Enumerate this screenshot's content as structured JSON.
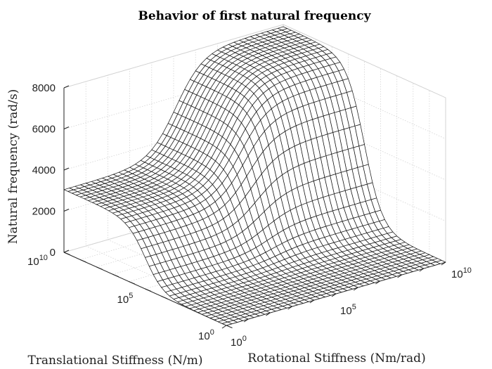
{
  "chart_data": {
    "type": "surface",
    "title": "Behavior of first natural frequency",
    "xlabel": "Rotational Stiffness (Nm/rad)",
    "ylabel": "Translational Stiffness (N/m)",
    "zlabel": "Natural frequency (rad/s)",
    "x_scale": "log",
    "y_scale": "log",
    "x_range": [
      1,
      10000000000
    ],
    "y_range": [
      1,
      10000000000
    ],
    "z_range": [
      0,
      8000
    ],
    "x_ticks": [
      {
        "base": "10",
        "exp": "0"
      },
      {
        "base": "10",
        "exp": "5"
      },
      {
        "base": "10",
        "exp": "10"
      }
    ],
    "y_ticks": [
      {
        "base": "10",
        "exp": "0"
      },
      {
        "base": "10",
        "exp": "5"
      },
      {
        "base": "10",
        "exp": "10"
      }
    ],
    "z_ticks": [
      "0",
      "2000",
      "4000",
      "6000",
      "8000"
    ],
    "grid": true,
    "mesh_lines": 40,
    "surface_samples": {
      "description_axes": "log10 of stiffness",
      "points": [
        {
          "log_rot": 0,
          "log_trans": 0,
          "freq": 0
        },
        {
          "log_rot": 10,
          "log_trans": 0,
          "freq": 0
        },
        {
          "log_rot": 0,
          "log_trans": 10,
          "freq": 3050
        },
        {
          "log_rot": 10,
          "log_trans": 10,
          "freq": 7900
        }
      ]
    }
  }
}
